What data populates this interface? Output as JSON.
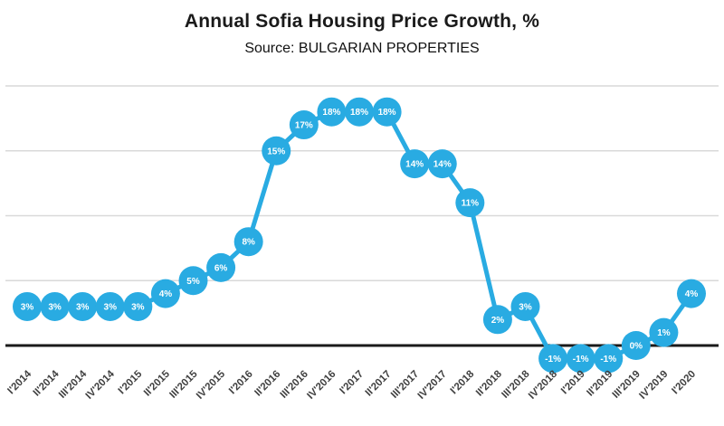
{
  "header": {
    "title": "Annual Sofia Housing Price Growth, %",
    "subtitle": "Source: BULGARIAN PROPERTIES"
  },
  "chart_data": {
    "type": "line",
    "title": "Annual Sofia Housing Price Growth, %",
    "subtitle": "Source: BULGARIAN PROPERTIES",
    "categories": [
      "I'2014",
      "II'2014",
      "III'2014",
      "IV'2014",
      "I'2015",
      "II'2015",
      "III'2015",
      "IV'2015",
      "I'2016",
      "II'2016",
      "III'2016",
      "IV'2016",
      "I'2017",
      "II'2017",
      "III'2017",
      "IV'2017",
      "I'2018",
      "II'2018",
      "III'2018",
      "IV'2018",
      "I'2019",
      "II'2019",
      "III'2019",
      "IV'2019",
      "I'2020"
    ],
    "values": [
      3,
      3,
      3,
      3,
      3,
      4,
      5,
      6,
      8,
      15,
      17,
      18,
      18,
      18,
      14,
      14,
      11,
      2,
      3,
      -1,
      -1,
      -1,
      0,
      1,
      4
    ],
    "value_suffix": "%",
    "ylim": [
      -3,
      22
    ],
    "gridline_values": [
      0,
      5,
      10,
      15,
      20
    ],
    "grid_on": true,
    "legend": "none",
    "colors": {
      "line": "#29ABE2",
      "marker": "#29ABE2",
      "marker_label": "#ffffff",
      "gridline": "#d9d9d9",
      "zero_line": "#1a1a1a",
      "axis_label": "#404040",
      "title": "#1a1a1a"
    }
  }
}
